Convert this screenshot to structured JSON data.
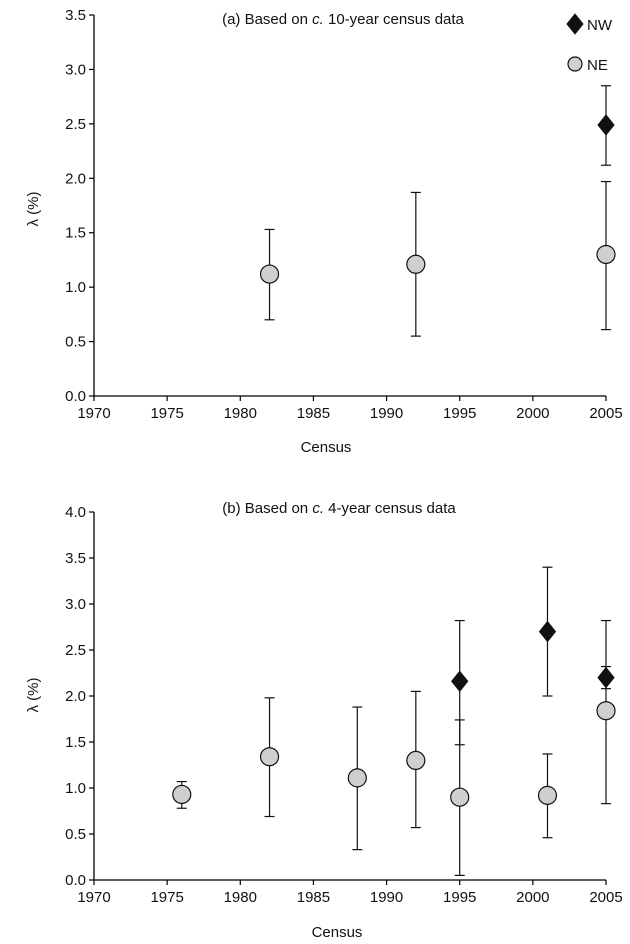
{
  "chart_data": [
    {
      "type": "scatter",
      "title_parts": [
        "(a) Based on ",
        "c.",
        " 10-year census data"
      ],
      "xlabel": "Census",
      "ylabel": "λ (%)",
      "xlim": [
        1970,
        2005
      ],
      "ylim": [
        0.0,
        3.5
      ],
      "x_ticks": [
        "1970",
        "1975",
        "1980",
        "1985",
        "1990",
        "1995",
        "2000",
        "2005"
      ],
      "y_ticks": [
        "0.0",
        "0.5",
        "1.0",
        "1.5",
        "2.0",
        "2.5",
        "3.0",
        "3.5"
      ],
      "legend_position": "top-right",
      "series": [
        {
          "name": "NW",
          "marker": "diamond",
          "color": "#111111",
          "points": [
            {
              "x": 2005,
              "y": 2.49,
              "lo": 2.12,
              "hi": 2.85
            }
          ]
        },
        {
          "name": "NE",
          "marker": "circle",
          "color": "#cfcfcf",
          "points": [
            {
              "x": 1982,
              "y": 1.12,
              "lo": 0.7,
              "hi": 1.53
            },
            {
              "x": 1992,
              "y": 1.21,
              "lo": 0.55,
              "hi": 1.87
            },
            {
              "x": 2005,
              "y": 1.3,
              "lo": 0.61,
              "hi": 1.97
            }
          ]
        }
      ]
    },
    {
      "type": "scatter",
      "title_parts": [
        "(b) Based on ",
        "c.",
        " 4-year census data"
      ],
      "xlabel": "Census",
      "ylabel": "λ (%)",
      "xlim": [
        1970,
        2005
      ],
      "ylim": [
        0.0,
        4.0
      ],
      "x_ticks": [
        "1970",
        "1975",
        "1980",
        "1985",
        "1990",
        "1995",
        "2000",
        "2005"
      ],
      "y_ticks": [
        "0.0",
        "0.5",
        "1.0",
        "1.5",
        "2.0",
        "2.5",
        "3.0",
        "3.5",
        "4.0"
      ],
      "series": [
        {
          "name": "NW",
          "marker": "diamond",
          "color": "#111111",
          "points": [
            {
              "x": 1995,
              "y": 2.16,
              "lo": 1.47,
              "hi": 2.82
            },
            {
              "x": 2001,
              "y": 2.7,
              "lo": 2.0,
              "hi": 3.4
            },
            {
              "x": 2005,
              "y": 2.2,
              "lo": 2.08,
              "hi": 2.82
            }
          ]
        },
        {
          "name": "NE",
          "marker": "circle",
          "color": "#cfcfcf",
          "points": [
            {
              "x": 1976,
              "y": 0.93,
              "lo": 0.78,
              "hi": 1.07
            },
            {
              "x": 1982,
              "y": 1.34,
              "lo": 0.69,
              "hi": 1.98
            },
            {
              "x": 1988,
              "y": 1.11,
              "lo": 0.33,
              "hi": 1.88
            },
            {
              "x": 1992,
              "y": 1.3,
              "lo": 0.57,
              "hi": 2.05
            },
            {
              "x": 1995,
              "y": 0.9,
              "lo": 0.05,
              "hi": 1.74
            },
            {
              "x": 2001,
              "y": 0.92,
              "lo": 0.46,
              "hi": 1.37
            },
            {
              "x": 2005,
              "y": 1.84,
              "lo": 0.83,
              "hi": 2.32
            }
          ]
        }
      ]
    }
  ]
}
